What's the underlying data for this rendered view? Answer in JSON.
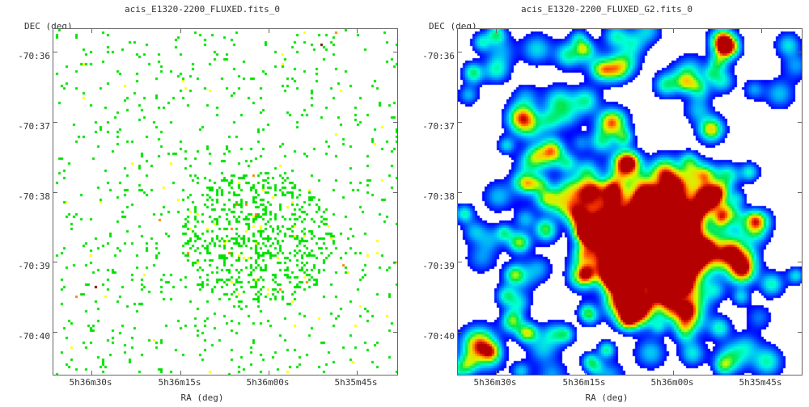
{
  "panels": [
    {
      "title": "acis_E1320-2200_FLUXED.fits_0",
      "ylabel": "DEC (deg)",
      "xlabel": "RA (deg)",
      "yticks": [
        "-70:36",
        "-70:37",
        "-70:38",
        "-70:39",
        "-70:40"
      ],
      "xticks": [
        "5h36m30s",
        "5h36m15s",
        "5h36m00s",
        "5h35m45s"
      ],
      "style": "sparse-pixels"
    },
    {
      "title": "acis_E1320-2200_FLUXED_G2.fits_0",
      "ylabel": "DEC (deg)",
      "xlabel": "RA (deg)",
      "yticks": [
        "-70:36",
        "-70:37",
        "-70:38",
        "-70:39",
        "-70:40"
      ],
      "xticks": [
        "5h36m30s",
        "5h36m15s",
        "5h36m00s",
        "5h35m45s"
      ],
      "style": "smoothed-heatmap"
    }
  ],
  "colors": {
    "low": "#00e000",
    "mid": "#ffff00",
    "high": "#ff0000",
    "peak": "#800000",
    "heat_blue": "#0000ff",
    "heat_cyan": "#00ffff"
  }
}
